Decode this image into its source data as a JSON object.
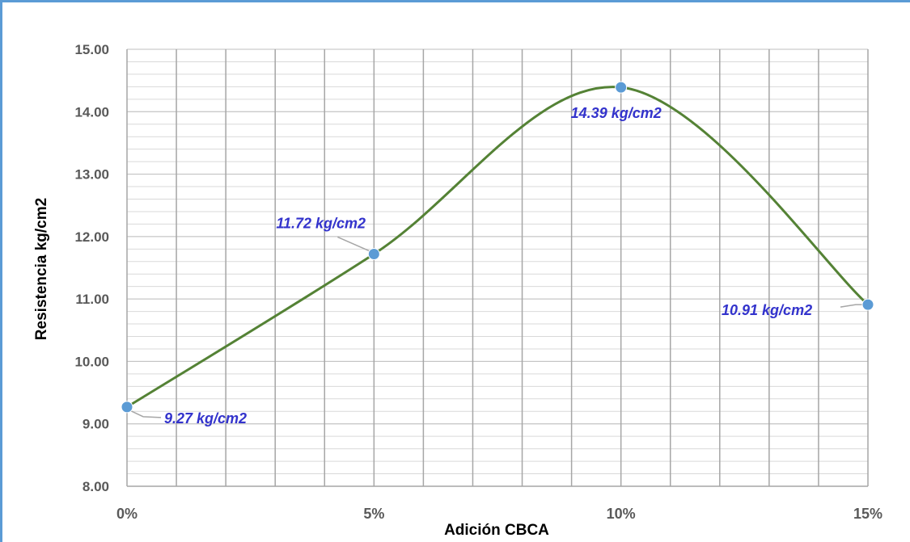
{
  "chart_data": {
    "type": "line",
    "smooth": true,
    "categories": [
      "0%",
      "5%",
      "10%",
      "15%"
    ],
    "x": [
      0,
      5,
      10,
      15
    ],
    "values": [
      9.27,
      11.72,
      14.39,
      10.91
    ],
    "data_labels": [
      "9.27 kg/cm2",
      "11.72 kg/cm2",
      "14.39 kg/cm2",
      "10.91 kg/cm2"
    ],
    "xlabel": "Adición CBCA",
    "ylabel": "Resistencia kg/cm2",
    "xlim": [
      0,
      15
    ],
    "ylim": [
      8,
      15
    ],
    "yticks": [
      "8.00",
      "9.00",
      "10.00",
      "11.00",
      "12.00",
      "13.00",
      "14.00",
      "15.00"
    ],
    "grid": true,
    "colors": {
      "line": "#548235",
      "marker": "#5b9bd5",
      "label_text": "#3333cc",
      "frame": "#5b9bd5"
    }
  }
}
